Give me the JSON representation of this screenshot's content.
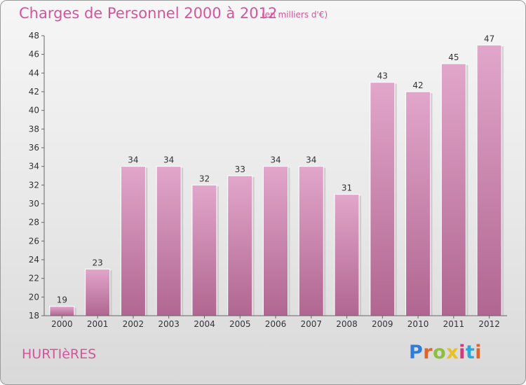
{
  "header": {
    "title": "Charges de Personnel 2000 à 2012",
    "subtitle": "(en milliers d'€)"
  },
  "footer": {
    "commune": "HURTIèRES",
    "logo_text": "Proxiti",
    "logo_colors": [
      "#2e7dd8",
      "#e0642a",
      "#8cbf3f",
      "#e8c020",
      "#d03a78",
      "#2aa7d8",
      "#e0642a"
    ]
  },
  "colors": {
    "bar": "#c97aaa",
    "bar_light": "#e2a6cb",
    "bar_dark": "#b06690",
    "text": "#333333",
    "accent": "#d4559a"
  },
  "chart_data": {
    "type": "bar",
    "categories": [
      "2000",
      "2001",
      "2002",
      "2003",
      "2004",
      "2005",
      "2006",
      "2007",
      "2008",
      "2009",
      "2010",
      "2011",
      "2012"
    ],
    "values": [
      19,
      23,
      34,
      34,
      32,
      33,
      34,
      34,
      31,
      43,
      42,
      45,
      47
    ],
    "ylim": [
      18,
      48
    ],
    "yticks": [
      18,
      20,
      22,
      24,
      26,
      28,
      30,
      32,
      34,
      36,
      38,
      40,
      42,
      44,
      46,
      48
    ],
    "grid": false,
    "legend": "none"
  }
}
